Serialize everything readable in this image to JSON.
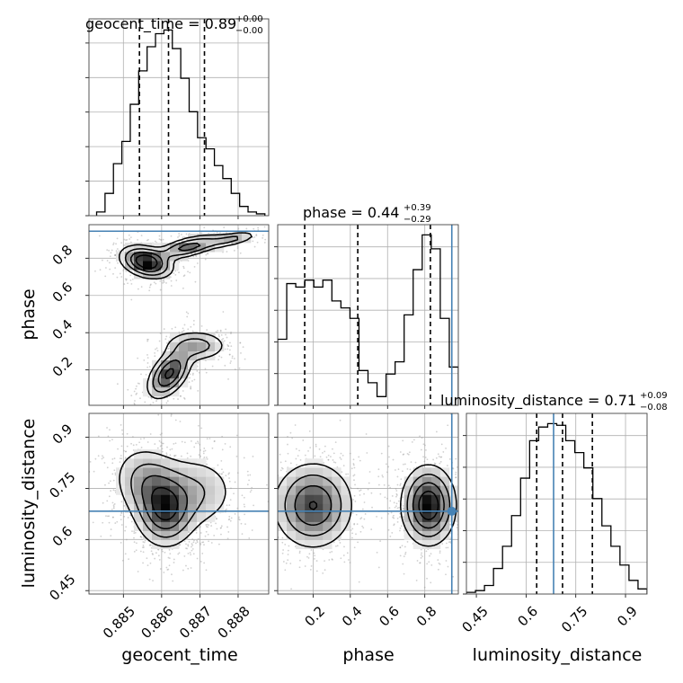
{
  "chart_data": {
    "type": "corner",
    "parameters": [
      "geocent_time",
      "phase",
      "luminosity_distance"
    ],
    "colors": {
      "truth": "#4682b4",
      "hist": "#000000",
      "grid": "#b0b0b0",
      "scatter": "#9a9a9a"
    },
    "panels": [
      {
        "id": "geocent_time-hist",
        "type": "histogram",
        "param": "geocent_time",
        "title_main": "geocent_time = 0.89",
        "title_up": "+0.00",
        "title_down": "−0.00",
        "xlim": [
          0.8841,
          0.8888
        ],
        "xticks": [
          0.885,
          0.886,
          0.887,
          0.888
        ],
        "bin_edges": [
          0.8843,
          0.88452,
          0.88474,
          0.88496,
          0.88518,
          0.8854,
          0.88562,
          0.88584,
          0.88606,
          0.88628,
          0.8865,
          0.88672,
          0.88694,
          0.88716,
          0.88738,
          0.8876,
          0.88782,
          0.88804,
          0.88826,
          0.88848,
          0.8887
        ],
        "heights": [
          0.02,
          0.12,
          0.28,
          0.4,
          0.6,
          0.78,
          0.91,
          0.98,
          1.0,
          0.9,
          0.74,
          0.56,
          0.42,
          0.36,
          0.27,
          0.2,
          0.12,
          0.05,
          0.02,
          0.01
        ],
        "quantiles": [
          0.88542,
          0.88618,
          0.88712
        ]
      },
      {
        "id": "phase-hist",
        "type": "histogram",
        "param": "phase",
        "title_main": "phase = 0.44",
        "title_up": "+0.39",
        "title_down": "−0.29",
        "xlim": [
          0.01,
          0.98
        ],
        "xticks": [
          0.2,
          0.4,
          0.6,
          0.8
        ],
        "bin_edges": [
          0.01,
          0.0585,
          0.107,
          0.1555,
          0.204,
          0.2525,
          0.301,
          0.3495,
          0.398,
          0.4465,
          0.495,
          0.5435,
          0.592,
          0.6405,
          0.689,
          0.7375,
          0.786,
          0.8345,
          0.883,
          0.9315,
          0.98
        ],
        "heights": [
          0.38,
          0.7,
          0.68,
          0.72,
          0.68,
          0.72,
          0.6,
          0.56,
          0.5,
          0.2,
          0.13,
          0.05,
          0.18,
          0.25,
          0.52,
          0.78,
          0.98,
          0.9,
          0.5,
          0.22
        ],
        "quantiles": [
          0.155,
          0.44,
          0.83
        ],
        "truth": 0.945
      },
      {
        "id": "luminosity_distance-hist",
        "type": "histogram",
        "param": "luminosity_distance",
        "title_main": "luminosity_distance = 0.71",
        "title_up": "+0.09",
        "title_down": "−0.08",
        "xlim": [
          0.42,
          0.965
        ],
        "xticks": [
          0.45,
          0.6,
          0.75,
          0.9
        ],
        "bin_edges": [
          0.42,
          0.44725,
          0.4745,
          0.50175,
          0.529,
          0.55625,
          0.5835,
          0.61075,
          0.638,
          0.66525,
          0.6925,
          0.71975,
          0.747,
          0.77425,
          0.8015,
          0.82875,
          0.856,
          0.88325,
          0.9105,
          0.93775,
          0.965
        ],
        "heights": [
          0.01,
          0.02,
          0.05,
          0.15,
          0.28,
          0.46,
          0.68,
          0.9,
          0.98,
          1.0,
          0.99,
          0.9,
          0.83,
          0.74,
          0.56,
          0.4,
          0.28,
          0.17,
          0.08,
          0.03
        ],
        "quantiles": [
          0.632,
          0.71,
          0.8
        ],
        "truth": 0.683
      },
      {
        "id": "phase-vs-geocent_time",
        "type": "density",
        "x": "geocent_time",
        "y": "phase",
        "xlim": [
          0.8841,
          0.8888
        ],
        "ylim": [
          0.01,
          0.98
        ],
        "xticks": [
          0.885,
          0.886,
          0.887,
          0.888
        ],
        "yticks": [
          0.2,
          0.4,
          0.6,
          0.8
        ],
        "truth_y": 0.945,
        "blobs": [
          {
            "cx": 0.8856,
            "cy": 0.78,
            "sx": 0.00035,
            "sy": 0.045,
            "w": 1.0,
            "corr": -0.3
          },
          {
            "cx": 0.8867,
            "cy": 0.86,
            "sx": 0.00045,
            "sy": 0.035,
            "w": 0.6,
            "corr": 0.6
          },
          {
            "cx": 0.8878,
            "cy": 0.9,
            "sx": 0.0004,
            "sy": 0.025,
            "w": 0.35,
            "corr": 0.6
          },
          {
            "cx": 0.8862,
            "cy": 0.18,
            "sx": 0.0003,
            "sy": 0.07,
            "w": 0.8,
            "corr": 0.5
          },
          {
            "cx": 0.8869,
            "cy": 0.33,
            "sx": 0.00045,
            "sy": 0.045,
            "w": 0.4,
            "corr": 0.0
          }
        ]
      },
      {
        "id": "luminosity_distance-vs-geocent_time",
        "type": "density",
        "x": "geocent_time",
        "y": "luminosity_distance",
        "xlim": [
          0.8841,
          0.8888
        ],
        "ylim": [
          0.44,
          0.97
        ],
        "xticks": [
          0.885,
          0.886,
          0.887,
          0.888
        ],
        "yticks": [
          0.45,
          0.6,
          0.75,
          0.9
        ],
        "truth_y": 0.683,
        "blobs": [
          {
            "cx": 0.8861,
            "cy": 0.68,
            "sx": 0.0004,
            "sy": 0.055,
            "w": 1.0,
            "corr": 0.0
          },
          {
            "cx": 0.8857,
            "cy": 0.76,
            "sx": 0.0005,
            "sy": 0.06,
            "w": 0.7,
            "corr": -0.2
          },
          {
            "cx": 0.8869,
            "cy": 0.74,
            "sx": 0.0006,
            "sy": 0.06,
            "w": 0.45,
            "corr": 0.0
          }
        ]
      },
      {
        "id": "luminosity_distance-vs-phase",
        "type": "density",
        "x": "phase",
        "y": "luminosity_distance",
        "xlim": [
          0.01,
          0.98
        ],
        "ylim": [
          0.44,
          0.97
        ],
        "xticks": [
          0.2,
          0.4,
          0.6,
          0.8
        ],
        "yticks": [
          0.45,
          0.6,
          0.75,
          0.9
        ],
        "truth_x": 0.945,
        "truth_y": 0.683,
        "blobs": [
          {
            "cx": 0.2,
            "cy": 0.7,
            "sx": 0.11,
            "sy": 0.065,
            "w": 0.8,
            "corr": 0.0
          },
          {
            "cx": 0.82,
            "cy": 0.7,
            "sx": 0.075,
            "sy": 0.06,
            "w": 1.0,
            "corr": 0.0
          }
        ]
      }
    ],
    "xlabels": [
      "geocent_time",
      "phase",
      "luminosity_distance"
    ],
    "ylabels": [
      "phase",
      "luminosity_distance"
    ]
  }
}
